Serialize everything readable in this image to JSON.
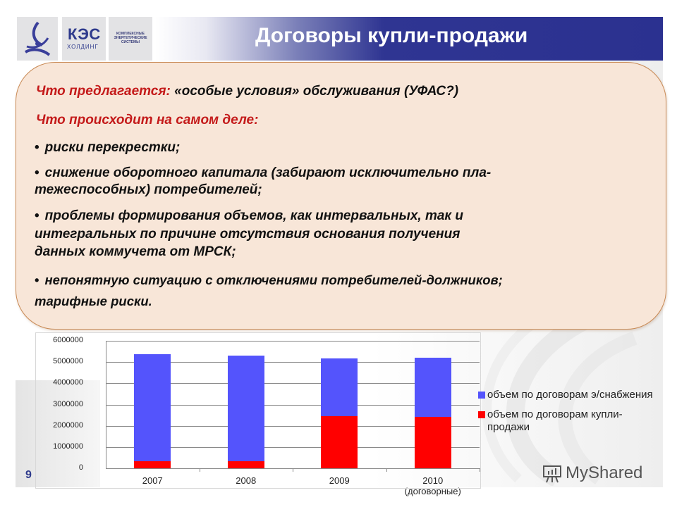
{
  "header": {
    "title": "Договоры купли-продажи",
    "logo_brand": "КЭС",
    "logo_sub": "ХОЛДИНГ",
    "logo_tagline": "КОМПЛЕКСНЫЕ ЭНЕРГЕТИЧЕСКИЕ СИСТЕМЫ"
  },
  "callout": {
    "offered_label": "Что предлагается:",
    "offered_text": "«особые условия» обслуживания (УФАС?)",
    "actual_label": "Что  происходит на самом деле:",
    "bullets": [
      {
        "lines": [
          "рискиi перекрестки;"
        ]
      },
      {
        "lines": [
          "снижение оборотного капитала (забирают исключительно пла-",
          "тежеспособных) потребителей;"
        ]
      },
      {
        "lines": [
          "проблемы  формирования объемов, как интервальных, так и",
          "интегральных по причине  отсутствия  основания получения",
          "данных коммучета от МРСК;"
        ]
      },
      {
        "lines": [
          "непонятную ситуацию с отключениями потребителей-должников;",
          "тарифные риски."
        ]
      }
    ],
    "bullet_symbol": "•"
  },
  "chart_data": {
    "type": "bar",
    "stacked": true,
    "title": "",
    "xlabel": "",
    "ylabel": "",
    "categories": [
      "2007",
      "2008",
      "2009",
      "2010 (договорные)"
    ],
    "category_labels": [
      [
        "2007"
      ],
      [
        "2008"
      ],
      [
        "2009"
      ],
      [
        "2010",
        "(договорные)"
      ]
    ],
    "series": [
      {
        "name": "объем по договорам купли-продажи",
        "color": "#ff0000",
        "values": [
          330000,
          330000,
          2450000,
          2420000
        ]
      },
      {
        "name": "объем по договорам э/снабжения",
        "color": "#5454fc",
        "values": [
          5040000,
          4970000,
          2720000,
          2780000
        ]
      }
    ],
    "ylim": [
      0,
      6000000
    ],
    "yticks": [
      "6000000",
      "5000000",
      "4000000",
      "3000000",
      "2000000",
      "1000000",
      "0"
    ],
    "grid": true,
    "legend_position": "right",
    "legend": [
      {
        "label": "объем по договорам э/снабжения",
        "color": "#5454fc"
      },
      {
        "label": "объем по договорам купли-продажи",
        "color": "#ff0000"
      }
    ]
  },
  "footer": {
    "page_number": "9",
    "watermark": "MyShared"
  }
}
